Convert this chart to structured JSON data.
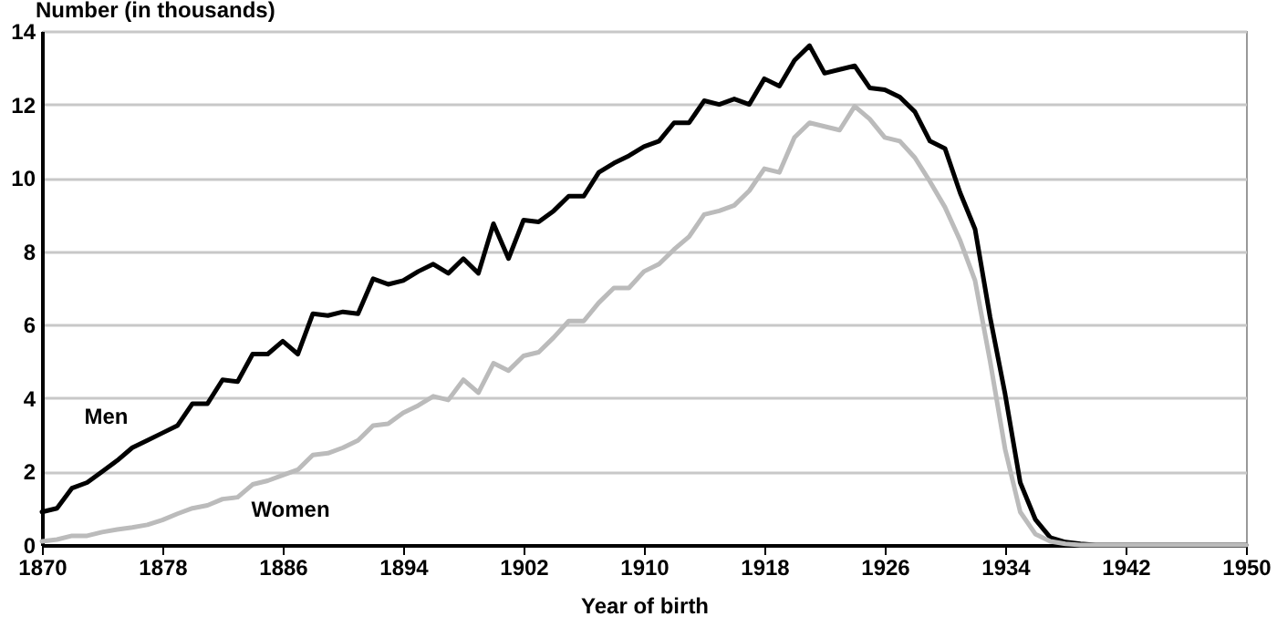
{
  "chart_data": {
    "type": "line",
    "xlabel": "Year of birth",
    "ylabel": "Number (in thousands)",
    "x": [
      1870,
      1871,
      1872,
      1873,
      1874,
      1875,
      1876,
      1877,
      1878,
      1879,
      1880,
      1881,
      1882,
      1883,
      1884,
      1885,
      1886,
      1887,
      1888,
      1889,
      1890,
      1891,
      1892,
      1893,
      1894,
      1895,
      1896,
      1897,
      1898,
      1899,
      1900,
      1901,
      1902,
      1903,
      1904,
      1905,
      1906,
      1907,
      1908,
      1909,
      1910,
      1911,
      1912,
      1913,
      1914,
      1915,
      1916,
      1917,
      1918,
      1919,
      1920,
      1921,
      1922,
      1923,
      1924,
      1925,
      1926,
      1927,
      1928,
      1929,
      1930,
      1931,
      1932,
      1933,
      1934,
      1935,
      1936,
      1937,
      1938,
      1939,
      1940,
      1941,
      1942,
      1943,
      1944,
      1945,
      1946,
      1947,
      1948,
      1949,
      1950
    ],
    "series": [
      {
        "name": "Men",
        "color": "#000000",
        "values": [
          0.9,
          1.0,
          1.55,
          1.7,
          2.0,
          2.3,
          2.65,
          2.85,
          3.05,
          3.25,
          3.85,
          3.85,
          4.5,
          4.45,
          5.2,
          5.2,
          5.55,
          5.2,
          6.3,
          6.25,
          6.35,
          6.3,
          7.25,
          7.1,
          7.2,
          7.45,
          7.65,
          7.4,
          7.8,
          7.4,
          8.75,
          7.8,
          8.85,
          8.8,
          9.1,
          9.5,
          9.5,
          10.15,
          10.4,
          10.6,
          10.85,
          11.0,
          11.5,
          11.5,
          12.1,
          12.0,
          12.15,
          12.0,
          12.7,
          12.5,
          13.2,
          13.6,
          12.85,
          12.95,
          13.05,
          12.45,
          12.4,
          12.2,
          11.8,
          11.0,
          10.8,
          9.6,
          8.6,
          6.2,
          4.1,
          1.7,
          0.7,
          0.2,
          0.08,
          0.03,
          0,
          0,
          0,
          0,
          0,
          0,
          0,
          0,
          0,
          0,
          0
        ]
      },
      {
        "name": "Women",
        "color": "#bbbbbb",
        "values": [
          0.1,
          0.15,
          0.25,
          0.25,
          0.35,
          0.42,
          0.48,
          0.55,
          0.68,
          0.85,
          1.0,
          1.08,
          1.25,
          1.3,
          1.65,
          1.75,
          1.9,
          2.05,
          2.45,
          2.5,
          2.65,
          2.85,
          3.25,
          3.3,
          3.6,
          3.8,
          4.05,
          3.95,
          4.5,
          4.15,
          4.95,
          4.75,
          5.15,
          5.25,
          5.65,
          6.1,
          6.1,
          6.6,
          7.0,
          7.0,
          7.45,
          7.65,
          8.05,
          8.4,
          9.0,
          9.1,
          9.25,
          9.65,
          10.25,
          10.15,
          11.1,
          11.5,
          11.4,
          11.3,
          11.95,
          11.6,
          11.1,
          11.0,
          10.55,
          9.9,
          9.2,
          8.3,
          7.2,
          5.0,
          2.6,
          0.9,
          0.3,
          0.1,
          0.03,
          0,
          0,
          0,
          0,
          0,
          0,
          0,
          0,
          0,
          0,
          0,
          0
        ]
      }
    ],
    "xlim": [
      1870,
      1950
    ],
    "xticks": [
      1870,
      1878,
      1886,
      1894,
      1902,
      1910,
      1918,
      1926,
      1934,
      1942,
      1950
    ],
    "ylim": [
      0,
      14
    ],
    "yticks": [
      0,
      2,
      4,
      6,
      8,
      10,
      12,
      14
    ],
    "grid": "y",
    "legend": false,
    "line_style": "solid",
    "marker": "none"
  }
}
